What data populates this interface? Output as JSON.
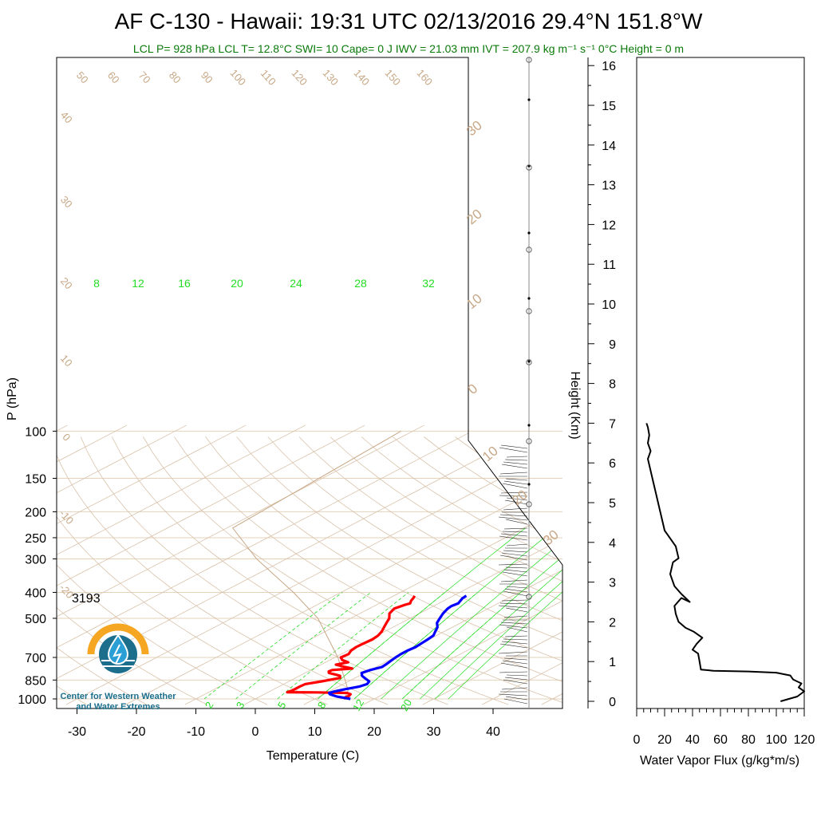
{
  "header": {
    "title": "AF C-130 - Hawaii: 19:31 UTC 02/13/2016  29.4°N 151.8°W",
    "subtitle": "LCL P= 928 hPa  LCL T= 12.8°C  SWI= 10  Cape= 0 J  IWV = 21.03 mm  IVT = 207.9 kg m⁻¹ s⁻¹  0°C Height = 0 m"
  },
  "annotation": "3193",
  "logo": {
    "line1": "Center for Western Weather",
    "line2": "and Water Extremes",
    "colors": {
      "sun": "#f5a623",
      "water": "#1b6f8c",
      "drop": "#2a9fd6"
    }
  },
  "colors": {
    "temperature": "#ff0000",
    "dewpoint": "#0000ff",
    "isotherm": "#d9c2aa",
    "adiabat": "#d9c2aa",
    "mixing_ratio": "#22dd22",
    "parcel": "#c8a887",
    "isobar": "#e6d2b8"
  },
  "chart_data": [
    {
      "type": "skew-t",
      "xlabel": "Temperature (C)",
      "ylabel": "P (hPa)",
      "y2label": "Height (Km)",
      "y_scale": "log",
      "x_ticks": [
        -30,
        -20,
        -10,
        0,
        10,
        20,
        30,
        40
      ],
      "y_ticks": [
        100,
        150,
        200,
        250,
        300,
        400,
        500,
        700,
        850,
        1000
      ],
      "height_ticks": [
        0,
        1,
        2,
        3,
        4,
        5,
        6,
        7,
        8,
        9,
        10,
        11,
        12,
        13,
        14,
        15,
        16
      ],
      "isotherm_labels": [
        50,
        60,
        70,
        80,
        90,
        100,
        110,
        120,
        130,
        140,
        150,
        160
      ],
      "isotherm_side_labels": [
        40,
        30,
        20,
        10,
        0,
        -10,
        -20
      ],
      "adiabat_labels": [
        30,
        20,
        10,
        0,
        -10,
        -20,
        -30
      ],
      "mixing_ratio_labels_top": [
        8,
        12,
        16,
        20,
        24,
        28,
        32
      ],
      "mixing_ratio_labels_bottom": [
        2,
        3,
        5,
        8,
        12,
        20
      ],
      "series": [
        {
          "name": "Temperature",
          "points": [
            [
              1000,
              15.2
            ],
            [
              990,
              14.6
            ],
            [
              975,
              14.8
            ],
            [
              960,
              14.5
            ],
            [
              950,
              13.5
            ],
            [
              945,
              8.0
            ],
            [
              944,
              3.2
            ],
            [
              930,
              3.5
            ],
            [
              900,
              3.5
            ],
            [
              880,
              3.6
            ],
            [
              860,
              5.5
            ],
            [
              835,
              7.5
            ],
            [
              820,
              6.8
            ],
            [
              810,
              5.5
            ],
            [
              800,
              4.0
            ],
            [
              790,
              3.5
            ],
            [
              780,
              3.6
            ],
            [
              770,
              6.5
            ],
            [
              760,
              4.8
            ],
            [
              745,
              2.5
            ],
            [
              730,
              3.8
            ],
            [
              715,
              2.0
            ],
            [
              700,
              1.0
            ],
            [
              680,
              1.2
            ],
            [
              660,
              0.5
            ],
            [
              640,
              0.2
            ],
            [
              620,
              0.3
            ],
            [
              600,
              0.5
            ],
            [
              580,
              0.2
            ],
            [
              560,
              -0.5
            ],
            [
              540,
              -1.5
            ],
            [
              520,
              -2.5
            ],
            [
              500,
              -3.5
            ],
            [
              480,
              -5.0
            ],
            [
              460,
              -5.8
            ],
            [
              445,
              -5.2
            ],
            [
              440,
              -4.8
            ],
            [
              430,
              -5.5
            ],
            [
              420,
              -6.0
            ],
            [
              412,
              -6.5
            ]
          ]
        },
        {
          "name": "Dew Point",
          "points": [
            [
              1000,
              16.0
            ],
            [
              980,
              13.0
            ],
            [
              960,
              11.0
            ],
            [
              950,
              10.5
            ],
            [
              940,
              10.8
            ],
            [
              920,
              12.0
            ],
            [
              900,
              13.5
            ],
            [
              880,
              14.0
            ],
            [
              860,
              13.5
            ],
            [
              840,
              12.0
            ],
            [
              820,
              10.5
            ],
            [
              800,
              9.5
            ],
            [
              780,
              10.0
            ],
            [
              760,
              11.0
            ],
            [
              740,
              10.8
            ],
            [
              700,
              10.2
            ],
            [
              680,
              10.0
            ],
            [
              660,
              10.0
            ],
            [
              640,
              10.2
            ],
            [
              620,
              10.0
            ],
            [
              600,
              9.8
            ],
            [
              580,
              9.5
            ],
            [
              560,
              8.5
            ],
            [
              540,
              7.5
            ],
            [
              520,
              6.0
            ],
            [
              500,
              5.0
            ],
            [
              480,
              4.0
            ],
            [
              460,
              3.2
            ],
            [
              450,
              3.0
            ],
            [
              440,
              3.3
            ],
            [
              430,
              2.8
            ],
            [
              420,
              2.3
            ],
            [
              412,
              2.2
            ]
          ]
        },
        {
          "name": "Parcel",
          "points": [
            [
              1000,
              15.0
            ],
            [
              928,
              12.8
            ],
            [
              850,
              9.0
            ],
            [
              700,
              0.5
            ],
            [
              500,
              -15.5
            ],
            [
              400,
              -28.0
            ],
            [
              300,
              -45.0
            ],
            [
              230,
              -59.0
            ],
            [
              100,
              -62.0
            ]
          ]
        }
      ],
      "legend": "none"
    },
    {
      "type": "line",
      "xlabel": "Water Vapor Flux (g/kg*m/s)",
      "ylabel": "",
      "xlim": [
        0,
        120
      ],
      "ylim": [
        0,
        16.4
      ],
      "x_ticks": [
        0,
        20,
        40,
        60,
        80,
        100,
        120
      ],
      "series": [
        {
          "name": "Water Vapor Flux",
          "points": [
            [
              103,
              0.0
            ],
            [
              108,
              0.05
            ],
            [
              115,
              0.12
            ],
            [
              120,
              0.25
            ],
            [
              116,
              0.35
            ],
            [
              118,
              0.45
            ],
            [
              112,
              0.55
            ],
            [
              110,
              0.65
            ],
            [
              100,
              0.72
            ],
            [
              80,
              0.75
            ],
            [
              55,
              0.77
            ],
            [
              46,
              0.8
            ],
            [
              45,
              1.0
            ],
            [
              44,
              1.2
            ],
            [
              40,
              1.3
            ],
            [
              43,
              1.45
            ],
            [
              47,
              1.6
            ],
            [
              41,
              1.75
            ],
            [
              35,
              1.85
            ],
            [
              30,
              2.0
            ],
            [
              28,
              2.2
            ],
            [
              27,
              2.4
            ],
            [
              32,
              2.6
            ],
            [
              38,
              2.5
            ],
            [
              32,
              2.7
            ],
            [
              27,
              2.9
            ],
            [
              24,
              3.2
            ],
            [
              26,
              3.5
            ],
            [
              30,
              3.6
            ],
            [
              28,
              3.9
            ],
            [
              24,
              4.1
            ],
            [
              20,
              4.3
            ],
            [
              18,
              4.6
            ],
            [
              16,
              4.9
            ],
            [
              14,
              5.2
            ],
            [
              12,
              5.5
            ],
            [
              10,
              5.8
            ],
            [
              8,
              6.1
            ],
            [
              10,
              6.3
            ],
            [
              8,
              6.5
            ],
            [
              9,
              6.7
            ],
            [
              8,
              6.9
            ],
            [
              7,
              7.0
            ]
          ]
        }
      ],
      "legend": "none"
    }
  ]
}
